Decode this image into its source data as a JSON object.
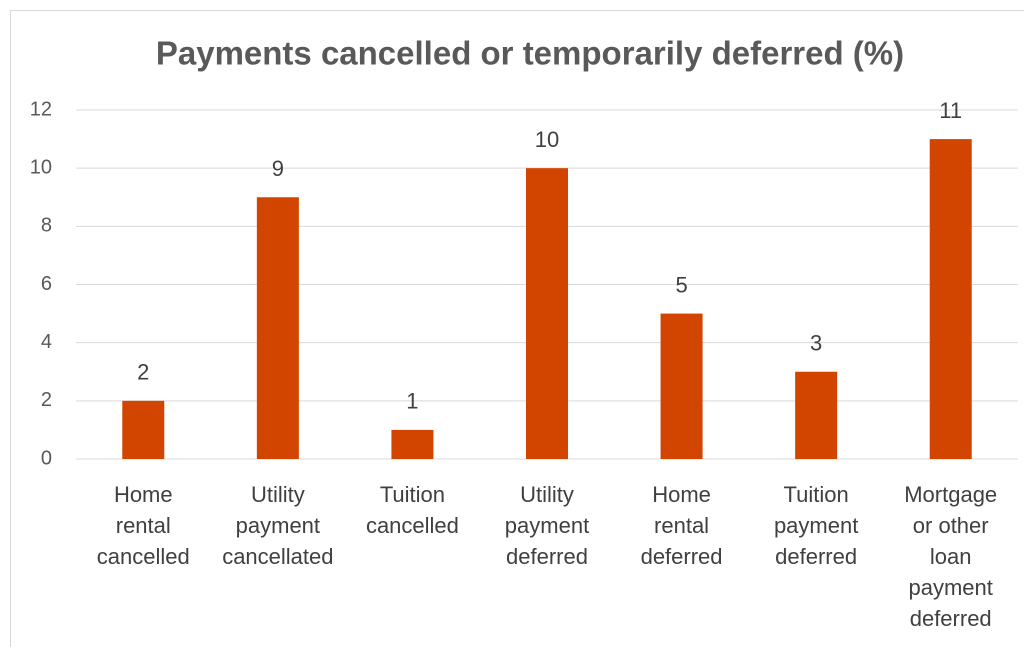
{
  "chart_data": {
    "type": "bar",
    "title": "Payments cancelled or temporarily deferred (%)",
    "categories": [
      "Home rental cancelled",
      "Utility payment cancellated",
      "Tuition cancelled",
      "Utility payment deferred",
      "Home rental deferred",
      "Tuition payment deferred",
      "Mortgage or other loan payment deferred"
    ],
    "values": [
      2,
      9,
      1,
      10,
      5,
      3,
      11
    ],
    "color": "#d24500",
    "ylim": [
      0,
      12
    ],
    "yticks": [
      0,
      2,
      4,
      6,
      8,
      10,
      12
    ],
    "grid": true
  }
}
